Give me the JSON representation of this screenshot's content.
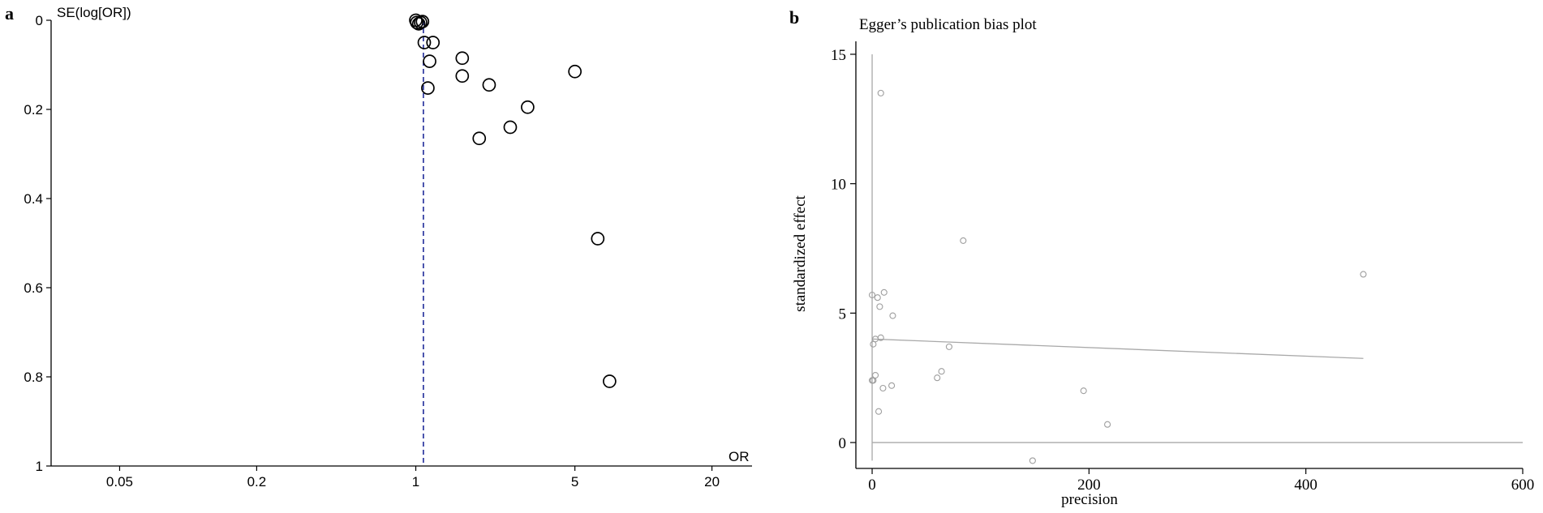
{
  "chart_data": [
    {
      "panel_letter": "a",
      "type": "scatter",
      "title": "",
      "xlabel": "OR",
      "ylabel": "SE(log[OR])",
      "x_scale": "log",
      "xlim": [
        0.025,
        30
      ],
      "ylim": [
        0,
        1
      ],
      "y_reversed": true,
      "x_ticks": [
        {
          "value": 0.05,
          "label": "0.05"
        },
        {
          "value": 0.2,
          "label": "0.2"
        },
        {
          "value": 1,
          "label": "1"
        },
        {
          "value": 5,
          "label": "5"
        },
        {
          "value": 20,
          "label": "20"
        }
      ],
      "y_ticks": [
        {
          "value": 0,
          "label": "0"
        },
        {
          "value": 0.2,
          "label": "0.2"
        },
        {
          "value": 0.4,
          "label": "0.4"
        },
        {
          "value": 0.6,
          "label": "0.6"
        },
        {
          "value": 0.8,
          "label": "0.8"
        },
        {
          "value": 1,
          "label": "1"
        }
      ],
      "pooled_or": 1.08,
      "marker": "open-circle",
      "reference_line_color": "#1f2a99",
      "points": [
        {
          "x": 1.0,
          "y": 0.0
        },
        {
          "x": 1.01,
          "y": 0.005
        },
        {
          "x": 1.03,
          "y": 0.008
        },
        {
          "x": 1.05,
          "y": 0.005
        },
        {
          "x": 1.07,
          "y": 0.003
        },
        {
          "x": 1.09,
          "y": 0.05
        },
        {
          "x": 1.19,
          "y": 0.05
        },
        {
          "x": 1.15,
          "y": 0.092
        },
        {
          "x": 1.13,
          "y": 0.152
        },
        {
          "x": 1.6,
          "y": 0.085
        },
        {
          "x": 1.6,
          "y": 0.125
        },
        {
          "x": 2.1,
          "y": 0.145
        },
        {
          "x": 3.1,
          "y": 0.195
        },
        {
          "x": 2.6,
          "y": 0.24
        },
        {
          "x": 1.9,
          "y": 0.265
        },
        {
          "x": 5.0,
          "y": 0.115
        },
        {
          "x": 6.3,
          "y": 0.49
        },
        {
          "x": 7.1,
          "y": 0.81
        }
      ]
    },
    {
      "panel_letter": "b",
      "type": "scatter",
      "title": "Egger’s publication bias plot",
      "xlabel": "precision",
      "ylabel": "standardized effect",
      "xlim": [
        -15,
        600
      ],
      "ylim": [
        -1,
        15.5
      ],
      "x_ticks": [
        {
          "value": 0,
          "label": "0"
        },
        {
          "value": 200,
          "label": "200"
        },
        {
          "value": 400,
          "label": "400"
        },
        {
          "value": 600,
          "label": "600"
        }
      ],
      "y_ticks": [
        {
          "value": 0,
          "label": "0"
        },
        {
          "value": 5,
          "label": "5"
        },
        {
          "value": 10,
          "label": "10"
        },
        {
          "value": 15,
          "label": "15"
        }
      ],
      "regression_line": {
        "x": [
          0,
          453
        ],
        "y": [
          4.0,
          3.25
        ]
      },
      "vertical_line": {
        "x": 0,
        "y": [
          -0.7,
          15
        ]
      },
      "zero_line": {
        "y": 0,
        "x": [
          0,
          600
        ]
      },
      "marker": "small-open-circle",
      "marker_color": "#9e9e9e",
      "points": [
        {
          "x": 8,
          "y": 13.5
        },
        {
          "x": 84,
          "y": 7.8
        },
        {
          "x": 453,
          "y": 6.5
        },
        {
          "x": 0,
          "y": 5.7
        },
        {
          "x": 5,
          "y": 5.6
        },
        {
          "x": 11,
          "y": 5.8
        },
        {
          "x": 7,
          "y": 5.25
        },
        {
          "x": 19,
          "y": 4.9
        },
        {
          "x": 3,
          "y": 4.0
        },
        {
          "x": 8,
          "y": 4.05
        },
        {
          "x": 1,
          "y": 3.8
        },
        {
          "x": 71,
          "y": 3.7
        },
        {
          "x": 64,
          "y": 2.75
        },
        {
          "x": 60,
          "y": 2.5
        },
        {
          "x": 3,
          "y": 2.6
        },
        {
          "x": 0,
          "y": 2.4
        },
        {
          "x": 1,
          "y": 2.4
        },
        {
          "x": 18,
          "y": 2.2
        },
        {
          "x": 10,
          "y": 2.1
        },
        {
          "x": 195,
          "y": 2.0
        },
        {
          "x": 6,
          "y": 1.2
        },
        {
          "x": 217,
          "y": 0.7
        },
        {
          "x": 148,
          "y": -0.7
        }
      ]
    }
  ]
}
